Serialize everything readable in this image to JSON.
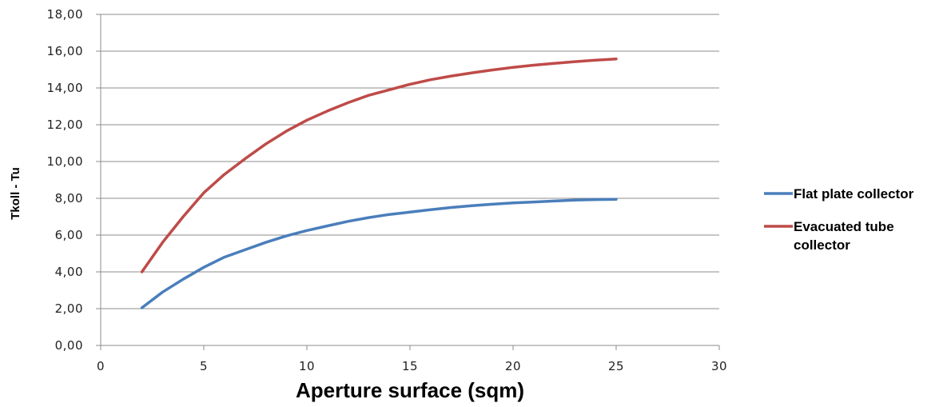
{
  "chart_data": {
    "type": "line",
    "title": "",
    "xlabel": "Aperture surface (sqm)",
    "ylabel": "Tkoll - Tu",
    "xlim": [
      0,
      30
    ],
    "ylim": [
      0,
      18
    ],
    "x_ticks": [
      "0",
      "5",
      "10",
      "15",
      "20",
      "25",
      "30"
    ],
    "y_ticks": [
      "0,00",
      "2,00",
      "4,00",
      "6,00",
      "8,00",
      "10,00",
      "12,00",
      "14,00",
      "16,00",
      "18,00"
    ],
    "grid": "horizontal",
    "legend_position": "right",
    "series": [
      {
        "name": "Flat plate collector",
        "color": "#4a7ebb",
        "x": [
          2,
          3,
          4,
          5,
          6,
          7,
          8,
          9,
          10,
          11,
          12,
          13,
          14,
          15,
          16,
          17,
          18,
          19,
          20,
          21,
          22,
          23,
          24,
          25
        ],
        "y": [
          2.05,
          2.9,
          3.6,
          4.25,
          4.8,
          5.2,
          5.6,
          5.95,
          6.25,
          6.5,
          6.75,
          6.95,
          7.12,
          7.25,
          7.38,
          7.5,
          7.6,
          7.68,
          7.75,
          7.8,
          7.85,
          7.9,
          7.93,
          7.95
        ]
      },
      {
        "name": "Evacuated tube collector",
        "color": "#be4b48",
        "x": [
          2,
          3,
          4,
          5,
          6,
          7,
          8,
          9,
          10,
          11,
          12,
          13,
          14,
          15,
          16,
          17,
          18,
          19,
          20,
          21,
          22,
          23,
          24,
          25
        ],
        "y": [
          4.0,
          5.6,
          7.0,
          8.3,
          9.3,
          10.15,
          10.95,
          11.65,
          12.25,
          12.75,
          13.2,
          13.6,
          13.9,
          14.2,
          14.45,
          14.65,
          14.82,
          14.98,
          15.12,
          15.24,
          15.34,
          15.43,
          15.51,
          15.58
        ]
      }
    ]
  }
}
